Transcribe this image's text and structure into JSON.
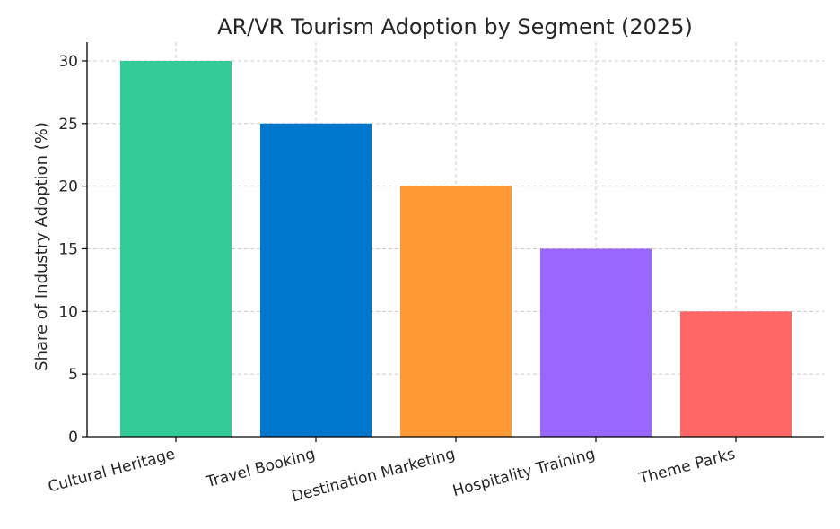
{
  "chart_data": {
    "type": "bar",
    "title": "AR/VR Tourism Adoption by Segment (2025)",
    "xlabel": "",
    "ylabel": "Share of Industry Adoption (%)",
    "categories": [
      "Cultural Heritage",
      "Travel Booking",
      "Destination Marketing",
      "Hospitality Training",
      "Theme Parks"
    ],
    "values": [
      30,
      25,
      20,
      15,
      10
    ],
    "colors": [
      "#33cc99",
      "#0077cc",
      "#ff9933",
      "#9966ff",
      "#ff6666"
    ],
    "ylim": [
      0,
      31.5
    ],
    "yticks": [
      0,
      5,
      10,
      15,
      20,
      25,
      30
    ],
    "grid": true,
    "x_tick_rotation_deg": 15
  }
}
